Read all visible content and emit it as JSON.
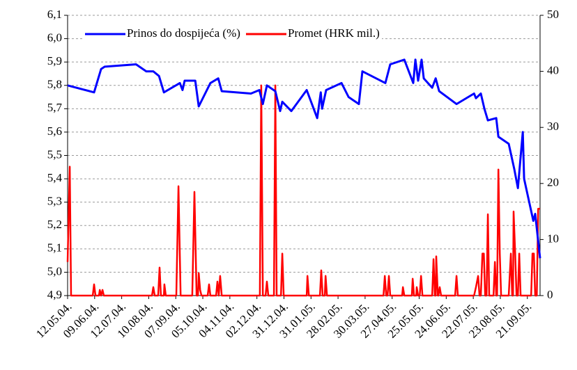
{
  "chart_data": {
    "type": "line",
    "xlim": [
      0,
      17.47
    ],
    "xticks": [
      {
        "value": 0,
        "label": "12.05.04."
      },
      {
        "value": 1,
        "label": "09.06.04."
      },
      {
        "value": 2,
        "label": "12.07.04."
      },
      {
        "value": 3,
        "label": "10.08.04."
      },
      {
        "value": 4,
        "label": "07.09.04."
      },
      {
        "value": 5,
        "label": "05.10.04."
      },
      {
        "value": 6,
        "label": "04.11.04."
      },
      {
        "value": 7,
        "label": "02.12.04."
      },
      {
        "value": 8,
        "label": "31.12.04."
      },
      {
        "value": 9,
        "label": "31.01.05."
      },
      {
        "value": 10,
        "label": "28.02.05."
      },
      {
        "value": 11,
        "label": "30.03.05."
      },
      {
        "value": 12,
        "label": "27.04.05."
      },
      {
        "value": 13,
        "label": "25.05.05."
      },
      {
        "value": 14,
        "label": "24.06.05."
      },
      {
        "value": 15,
        "label": "22.07.05."
      },
      {
        "value": 16,
        "label": "23.08.05."
      },
      {
        "value": 17,
        "label": "21.09.05."
      }
    ],
    "ylim": [
      4.9,
      6.1
    ],
    "yticks": [
      {
        "value": 4.9,
        "label": "4,9"
      },
      {
        "value": 5.0,
        "label": "5,0"
      },
      {
        "value": 5.1,
        "label": "5,1"
      },
      {
        "value": 5.2,
        "label": "5,2"
      },
      {
        "value": 5.3,
        "label": "5,3"
      },
      {
        "value": 5.4,
        "label": "5,4"
      },
      {
        "value": 5.5,
        "label": "5,5"
      },
      {
        "value": 5.6,
        "label": "5,6"
      },
      {
        "value": 5.7,
        "label": "5,7"
      },
      {
        "value": 5.8,
        "label": "5,8"
      },
      {
        "value": 5.9,
        "label": "5,9"
      },
      {
        "value": 6.0,
        "label": "6,0"
      },
      {
        "value": 6.1,
        "label": "6,1"
      }
    ],
    "y2lim": [
      0,
      50
    ],
    "y2ticks": [
      0,
      10,
      20,
      30,
      40,
      50
    ],
    "grid": true,
    "legend": "top",
    "series": [
      {
        "name": "Prinos do dospijeća (%)",
        "color": "#0000ff",
        "x": [
          0,
          0.98,
          1.24,
          1.37,
          2.53,
          2.91,
          3.17,
          3.38,
          3.56,
          4.15,
          4.25,
          4.33,
          4.72,
          4.85,
          5.28,
          5.57,
          5.7,
          6.78,
          7.09,
          7.22,
          7.37,
          7.68,
          7.86,
          7.94,
          8.27,
          8.84,
          9.23,
          9.36,
          9.41,
          9.56,
          10.13,
          10.39,
          10.77,
          10.9,
          11.75,
          11.93,
          12.45,
          12.78,
          12.86,
          12.96,
          13.09,
          13.17,
          13.48,
          13.61,
          13.74,
          14.38,
          15.03,
          15.1,
          15.28,
          15.41,
          15.54,
          15.85,
          15.93,
          16.31,
          16.52,
          16.65,
          16.83,
          16.88,
          17.22,
          17.29,
          17.47
        ],
        "values": [
          5.8,
          5.77,
          5.87,
          5.88,
          5.89,
          5.86,
          5.86,
          5.84,
          5.77,
          5.81,
          5.78,
          5.82,
          5.82,
          5.71,
          5.81,
          5.83,
          5.775,
          5.765,
          5.78,
          5.72,
          5.8,
          5.775,
          5.69,
          5.73,
          5.69,
          5.78,
          5.66,
          5.77,
          5.7,
          5.78,
          5.81,
          5.75,
          5.72,
          5.86,
          5.81,
          5.89,
          5.91,
          5.81,
          5.91,
          5.82,
          5.91,
          5.83,
          5.79,
          5.83,
          5.775,
          5.72,
          5.765,
          5.745,
          5.765,
          5.7,
          5.65,
          5.66,
          5.58,
          5.55,
          5.44,
          5.36,
          5.6,
          5.4,
          5.22,
          5.25,
          5.06
        ]
      },
      {
        "name": "Promet (HRK mil.)",
        "color": "#ff0000",
        "axis": "y2",
        "x": [
          0,
          0.08,
          0.13,
          0.93,
          0.98,
          1.03,
          1.16,
          1.19,
          1.24,
          1.29,
          1.34,
          3.12,
          3.17,
          3.22,
          3.35,
          3.4,
          3.45,
          3.56,
          3.58,
          3.63,
          4.02,
          4.1,
          4.18,
          4.61,
          4.69,
          4.77,
          4.82,
          4.85,
          4.9,
          4.95,
          5.18,
          5.23,
          5.28,
          5.49,
          5.54,
          5.59,
          5.64,
          5.7,
          7.11,
          7.16,
          7.22,
          7.32,
          7.37,
          7.42,
          7.63,
          7.68,
          7.73,
          7.89,
          7.94,
          7.99,
          8.84,
          8.87,
          8.92,
          9.33,
          9.38,
          9.43,
          9.51,
          9.54,
          9.59,
          11.68,
          11.73,
          11.78,
          11.83,
          11.88,
          11.93,
          12.37,
          12.4,
          12.45,
          12.73,
          12.76,
          12.81,
          12.89,
          12.91,
          12.96,
          13.02,
          13.07,
          13.12,
          13.48,
          13.53,
          13.58,
          13.61,
          13.63,
          13.69,
          13.71,
          13.76,
          13.81,
          14.33,
          14.38,
          14.43,
          15.03,
          15.1,
          15.18,
          15.23,
          15.28,
          15.34,
          15.39,
          15.44,
          15.49,
          15.54,
          15.59,
          15.75,
          15.8,
          15.85,
          15.88,
          15.93,
          15.98,
          16.03,
          16.31,
          16.39,
          16.44,
          16.47,
          16.49,
          16.55,
          16.6,
          16.65,
          16.7,
          16.75,
          17.14,
          17.19,
          17.24,
          17.29,
          17.35,
          17.4,
          17.47
        ],
        "values": [
          6,
          23,
          0,
          0,
          2,
          0,
          0,
          1,
          0,
          1,
          0,
          0,
          1.5,
          0,
          0,
          5,
          0,
          0,
          2,
          0,
          0,
          19.5,
          0,
          0,
          18.5,
          0,
          0,
          4,
          1,
          0,
          0,
          2,
          0,
          0,
          2.5,
          0,
          3.5,
          0,
          0,
          37.5,
          0,
          0,
          2.5,
          0,
          0,
          37.5,
          0,
          0,
          7.5,
          0,
          0,
          3.5,
          0,
          0,
          4.5,
          0,
          0,
          3.5,
          0,
          0,
          3.5,
          0,
          0,
          3.5,
          0,
          0,
          1.5,
          0,
          0,
          3,
          0,
          0,
          1.5,
          0,
          0,
          3.5,
          0,
          0,
          6.5,
          0,
          0,
          7,
          0,
          0,
          1.5,
          0,
          0,
          3.5,
          0,
          0,
          1.5,
          3.5,
          0,
          0,
          7.5,
          7.5,
          0,
          0,
          14.5,
          0,
          0,
          6,
          0,
          0,
          22.5,
          7.5,
          0,
          0,
          7.5,
          0,
          0,
          15,
          7.5,
          0,
          0,
          7.5,
          0,
          0,
          7.5,
          7.5,
          0,
          0,
          15.5,
          15.5
        ]
      }
    ]
  }
}
